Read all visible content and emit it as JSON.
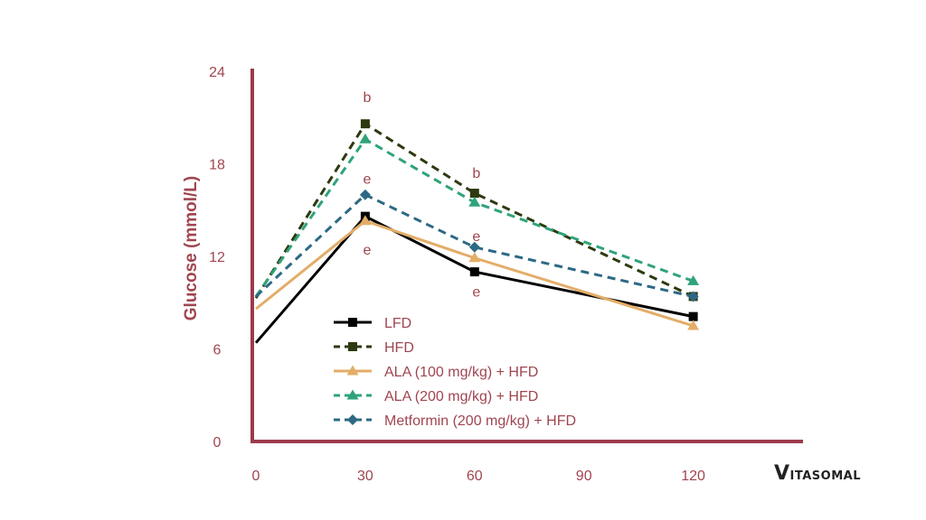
{
  "brand": {
    "first": "V",
    "rest": "itasomal"
  },
  "chart_data": {
    "type": "line",
    "title": "",
    "xlabel": "",
    "ylabel": "Glucose (mmol/L)",
    "x": [
      0,
      30,
      60,
      120
    ],
    "xticks": [
      0,
      30,
      60,
      90,
      120
    ],
    "yticks": [
      0,
      6,
      12,
      18,
      24
    ],
    "xlim": [
      0,
      150
    ],
    "ylim": [
      0,
      24
    ],
    "axis_color": "#9b3b4b",
    "series": [
      {
        "name": "LFD",
        "color": "#000000",
        "dash": "solid",
        "marker": "square",
        "values": [
          6.4,
          14.6,
          11.0,
          8.1
        ]
      },
      {
        "name": "HFD",
        "color": "#2d3a10",
        "dash": "dashed",
        "marker": "square",
        "values": [
          9.3,
          20.6,
          16.1,
          9.4
        ]
      },
      {
        "name": "ALA (100 mg/kg) + HFD",
        "color": "#e3ad68",
        "dash": "solid",
        "marker": "triangle",
        "values": [
          8.6,
          14.3,
          11.9,
          7.5
        ]
      },
      {
        "name": "ALA (200 mg/kg) + HFD",
        "color": "#2fa37a",
        "dash": "dashed",
        "marker": "triangle",
        "values": [
          9.4,
          19.6,
          15.5,
          10.4
        ]
      },
      {
        "name": "Metformin (200 mg/kg) + HFD",
        "color": "#2d6984",
        "dash": "dashed",
        "marker": "diamond",
        "values": [
          9.4,
          16.0,
          12.6,
          9.4
        ]
      }
    ],
    "annotations": [
      {
        "text": "b",
        "x": 30,
        "y": 22.3
      },
      {
        "text": "e",
        "x": 30,
        "y": 17.0
      },
      {
        "text": "e",
        "x": 30,
        "y": 12.4
      },
      {
        "text": "b",
        "x": 60,
        "y": 17.4
      },
      {
        "text": "e",
        "x": 60,
        "y": 13.3
      },
      {
        "text": "e",
        "x": 60,
        "y": 9.7
      }
    ],
    "legend_position": "lower-center"
  }
}
